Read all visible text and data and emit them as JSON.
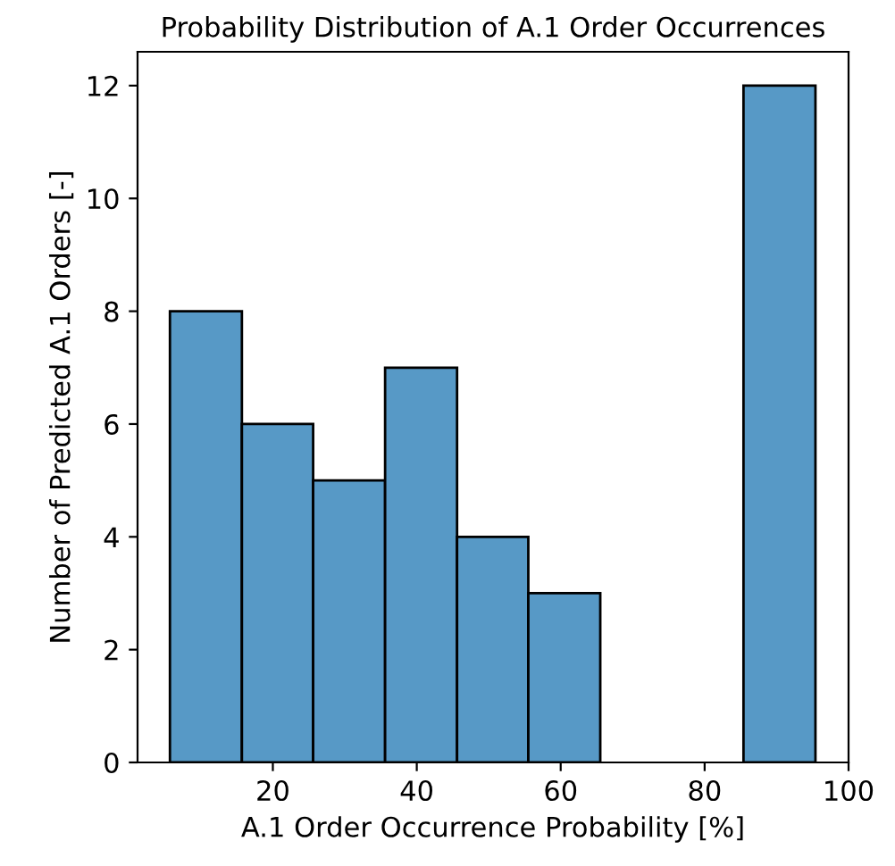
{
  "chart_data": {
    "type": "histogram",
    "title": "Probability Distribution of A.1 Order Occurrences",
    "xlabel": "A.1 Order Occurrence Probability [%]",
    "ylabel": "Number of Predicted A.1 Orders [-]",
    "bins": [
      5.7,
      15.7,
      25.6,
      35.6,
      45.6,
      55.5,
      65.5,
      85.4,
      95.4
    ],
    "values": [
      8,
      6,
      5,
      7,
      4,
      3,
      0,
      12
    ],
    "color": "#5799c6",
    "xlim": [
      1.2,
      100
    ],
    "xticks": [
      20,
      40,
      60,
      80,
      100
    ],
    "ylim": [
      0,
      12.6
    ],
    "yticks": [
      0,
      2,
      4,
      6,
      8,
      10,
      12
    ],
    "grid": false
  }
}
